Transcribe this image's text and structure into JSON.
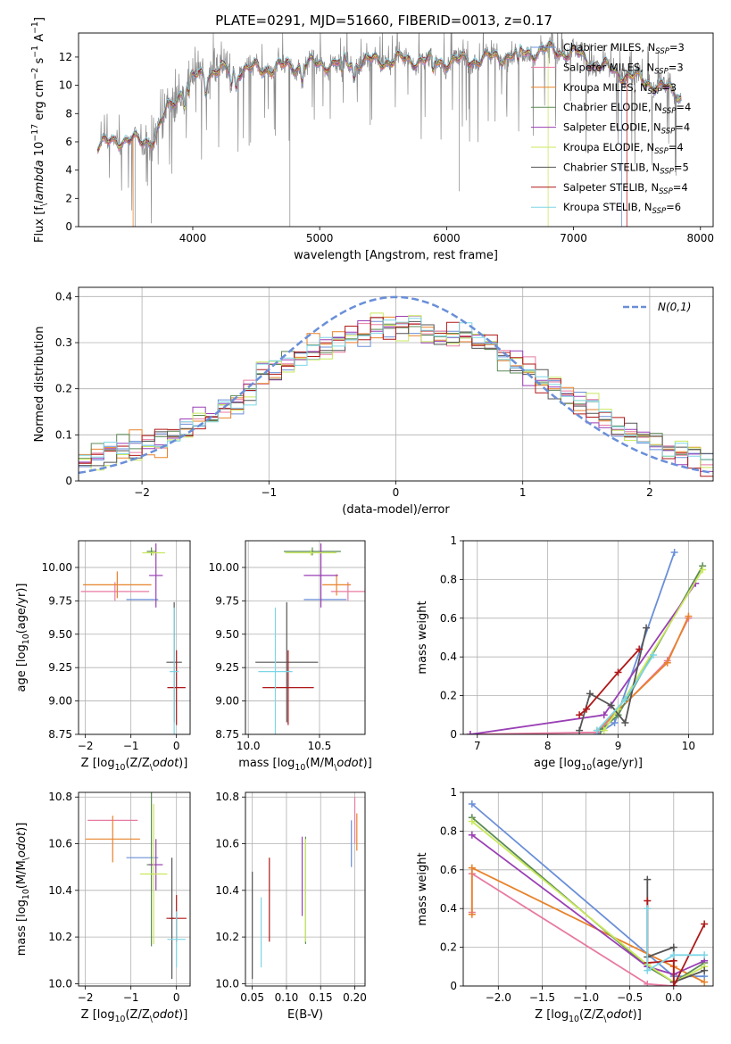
{
  "figure_title": "PLATE=0291, MJD=51660, FIBERID=0013, z=0.17",
  "colors": {
    "Chabrier MILES": "#6a8fd8",
    "Salpeter MILES": "#e87aa2",
    "Kroupa MILES": "#e8822a",
    "Chabrier ELODIE": "#5b8a55",
    "Salpeter ELODIE": "#9a3fb5",
    "Kroupa ELODIE": "#c9e85c",
    "Chabrier STELIB": "#555555",
    "Salpeter STELIB": "#b01818",
    "Kroupa STELIB": "#7dd6e6",
    "data": "#888888",
    "normal": "#6a8fd8",
    "grid": "#b0b0b0"
  },
  "chart_data": [
    {
      "id": "spectrum",
      "type": "line",
      "xlabel": "wavelength [Angstrom, rest frame]",
      "ylabel": "Flux [f$_\\lambda$ 10$^{-17}$ erg cm$^{-2}$ s$^{-1}$ A$^{-1}$]",
      "xlim": [
        3100,
        8100
      ],
      "ylim": [
        0,
        13.7
      ],
      "xticks": [
        4000,
        5000,
        6000,
        7000,
        8000
      ],
      "yticks": [
        0,
        2,
        4,
        6,
        8,
        10,
        12
      ],
      "grid": false,
      "legend_position": "right",
      "legend": [
        {
          "label": "Chabrier MILES, N",
          "sub": "SSP",
          "eq": "=3",
          "color_key": "Chabrier MILES"
        },
        {
          "label": "Salpeter MILES, N",
          "sub": "SSP",
          "eq": "=3",
          "color_key": "Salpeter MILES"
        },
        {
          "label": "Kroupa MILES, N",
          "sub": "SSP",
          "eq": "=3",
          "color_key": "Kroupa MILES"
        },
        {
          "label": "Chabrier ELODIE, N",
          "sub": "SSP",
          "eq": "=4",
          "color_key": "Chabrier ELODIE"
        },
        {
          "label": "Salpeter ELODIE, N",
          "sub": "SSP",
          "eq": "=4",
          "color_key": "Salpeter ELODIE"
        },
        {
          "label": "Kroupa ELODIE, N",
          "sub": "SSP",
          "eq": "=4",
          "color_key": "Kroupa ELODIE"
        },
        {
          "label": "Chabrier STELIB, N",
          "sub": "SSP",
          "eq": "=5",
          "color_key": "Chabrier STELIB"
        },
        {
          "label": "Salpeter STELIB, N",
          "sub": "SSP",
          "eq": "=4",
          "color_key": "Salpeter STELIB"
        },
        {
          "label": "Kroupa STELIB, N",
          "sub": "SSP",
          "eq": "=6",
          "color_key": "Kroupa STELIB"
        }
      ],
      "continuum": {
        "x": [
          3250,
          3400,
          3500,
          3600,
          3700,
          3800,
          3900,
          4000,
          4100,
          4200,
          4400,
          4600,
          4800,
          5000,
          5200,
          5400,
          5600,
          5800,
          6000,
          6200,
          6400,
          6600,
          6800,
          7000,
          7200,
          7400,
          7600,
          7800,
          7850
        ],
        "y": [
          5.6,
          6.2,
          6.1,
          6.0,
          6.3,
          8.3,
          9.5,
          10.5,
          10.9,
          11.0,
          11.1,
          11.2,
          11.4,
          11.5,
          11.6,
          11.7,
          11.8,
          11.8,
          11.7,
          11.8,
          12.0,
          12.3,
          12.5,
          12.3,
          11.4,
          10.8,
          10.2,
          9.5,
          9.3
        ]
      },
      "model_drop_x": {
        "Kroupa MILES": 3530,
        "Kroupa ELODIE": 6800,
        "Salpeter STELIB": 7420,
        "Chabrier MILES": 7380
      }
    },
    {
      "id": "residual_histogram",
      "type": "line",
      "xlabel": "(data-model)/error",
      "ylabel": "Normed distribution",
      "xlim": [
        -2.5,
        2.5
      ],
      "ylim": [
        0,
        0.42
      ],
      "xticks": [
        -2,
        -1,
        0,
        1,
        2
      ],
      "yticks": [
        0.0,
        0.1,
        0.2,
        0.3,
        0.4
      ],
      "grid": true,
      "legend": [
        {
          "label": "$\\mathcal{N}(0,1)$",
          "color_key": "normal",
          "style": "dashed"
        }
      ],
      "legend_position": "upper right",
      "bin_width": 0.1,
      "envelope": {
        "x": [
          -2.5,
          -2.0,
          -1.7,
          -1.5,
          -1.2,
          -1.0,
          -0.8,
          -0.6,
          -0.4,
          -0.2,
          0.0,
          0.2,
          0.4,
          0.6,
          0.8,
          1.0,
          1.2,
          1.4,
          1.6,
          1.8,
          2.0,
          2.2,
          2.5
        ],
        "y": [
          0.045,
          0.08,
          0.1,
          0.14,
          0.19,
          0.24,
          0.26,
          0.29,
          0.31,
          0.33,
          0.34,
          0.33,
          0.32,
          0.31,
          0.28,
          0.25,
          0.21,
          0.18,
          0.15,
          0.11,
          0.08,
          0.065,
          0.04
        ]
      }
    },
    {
      "id": "age_vs_Z",
      "type": "scatter",
      "xlabel": "Z [log$_{10}$(Z/Z$_\\odot$)]",
      "ylabel": "age  [log$_{10}$(age/yr)]",
      "xlim": [
        -2.15,
        0.3
      ],
      "ylim": [
        8.75,
        10.2
      ],
      "xticks": [
        -2,
        -1,
        0
      ],
      "yticks": [
        8.75,
        9.0,
        9.25,
        9.5,
        9.75,
        10.0
      ],
      "ytick_labels": [
        "8.75",
        "9.00",
        "9.25",
        "9.50",
        "9.75",
        "10.00"
      ],
      "grid": true,
      "points": [
        {
          "k": "Chabrier MILES",
          "x": -0.75,
          "xe": 0.35,
          "y": 9.76,
          "ye": 0.0
        },
        {
          "k": "Salpeter MILES",
          "x": -1.35,
          "xe": 0.75,
          "y": 9.82,
          "ye": 0.07
        },
        {
          "k": "Kroupa MILES",
          "x": -1.3,
          "xe": 0.75,
          "y": 9.87,
          "ye": 0.1
        },
        {
          "k": "Chabrier ELODIE",
          "x": -0.55,
          "xe": 0.1,
          "y": 10.12,
          "ye": 0.03
        },
        {
          "k": "Salpeter ELODIE",
          "x": -0.45,
          "xe": 0.15,
          "y": 9.94,
          "ye": 0.24
        },
        {
          "k": "Kroupa ELODIE",
          "x": -0.5,
          "xe": 0.25,
          "y": 10.11,
          "ye": 0.02
        },
        {
          "k": "Chabrier STELIB",
          "x": -0.05,
          "xe": 0.17,
          "y": 9.29,
          "ye": 0.45
        },
        {
          "k": "Salpeter STELIB",
          "x": 0.0,
          "xe": 0.2,
          "y": 9.1,
          "ye": 0.28
        },
        {
          "k": "Kroupa STELIB",
          "x": -0.05,
          "xe": 0.1,
          "y": 9.22,
          "ye": 0.48
        }
      ]
    },
    {
      "id": "age_vs_mass",
      "type": "scatter",
      "xlabel": "mass [log$_{10}$(M/M$_\\odot$)]",
      "ylabel": "",
      "xlim": [
        9.98,
        10.82
      ],
      "ylim": [
        8.75,
        10.2
      ],
      "xticks": [
        10.0,
        10.5
      ],
      "xtick_labels": [
        "10.0",
        "10.5"
      ],
      "yticks": [
        8.75,
        9.0,
        9.25,
        9.5,
        9.75,
        10.0
      ],
      "ytick_labels": [
        "8.75",
        "9.00",
        "9.25",
        "9.50",
        "9.75",
        "10.00"
      ],
      "grid": true,
      "points": [
        {
          "k": "Chabrier MILES",
          "x": 10.54,
          "xe": 0.15,
          "y": 9.76,
          "ye": 0.0
        },
        {
          "k": "Salpeter MILES",
          "x": 10.7,
          "xe": 0.12,
          "y": 9.82,
          "ye": 0.07
        },
        {
          "k": "Kroupa MILES",
          "x": 10.62,
          "xe": 0.1,
          "y": 9.87,
          "ye": 0.08
        },
        {
          "k": "Chabrier ELODIE",
          "x": 10.45,
          "xe": 0.2,
          "y": 10.12,
          "ye": 0.03
        },
        {
          "k": "Salpeter ELODIE",
          "x": 10.51,
          "xe": 0.12,
          "y": 9.94,
          "ye": 0.24
        },
        {
          "k": "Kroupa ELODIE",
          "x": 10.44,
          "xe": 0.18,
          "y": 10.11,
          "ye": 0.02
        },
        {
          "k": "Chabrier STELIB",
          "x": 10.27,
          "xe": 0.22,
          "y": 9.29,
          "ye": 0.45
        },
        {
          "k": "Salpeter STELIB",
          "x": 10.28,
          "xe": 0.18,
          "y": 9.1,
          "ye": 0.28
        },
        {
          "k": "Kroupa STELIB",
          "x": 10.19,
          "xe": 0.12,
          "y": 9.22,
          "ye": 0.48
        }
      ]
    },
    {
      "id": "massweight_vs_age",
      "type": "line",
      "xlabel": "age  [log$_{10}$(age/yr)]",
      "ylabel": "mass weight",
      "xlim": [
        6.8,
        10.35
      ],
      "ylim": [
        0,
        1.0
      ],
      "xticks": [
        7,
        8,
        9,
        10
      ],
      "yticks": [
        0.0,
        0.2,
        0.4,
        0.6,
        0.8,
        1.0
      ],
      "grid": true,
      "series": [
        {
          "k": "Chabrier MILES",
          "x": [
            8.7,
            8.95,
            9.8
          ],
          "y": [
            0.0,
            0.06,
            0.94
          ]
        },
        {
          "k": "Salpeter MILES",
          "x": [
            6.9,
            8.7,
            9.7,
            10.0
          ],
          "y": [
            0.0,
            0.01,
            0.38,
            0.6
          ]
        },
        {
          "k": "Kroupa MILES",
          "x": [
            8.7,
            9.7,
            10.0
          ],
          "y": [
            0.02,
            0.37,
            0.61
          ]
        },
        {
          "k": "Chabrier ELODIE",
          "x": [
            8.75,
            9.0,
            10.2
          ],
          "y": [
            0.02,
            0.1,
            0.87
          ]
        },
        {
          "k": "Salpeter ELODIE",
          "x": [
            6.9,
            8.8,
            10.1
          ],
          "y": [
            0.0,
            0.1,
            0.78
          ]
        },
        {
          "k": "Kroupa ELODIE",
          "x": [
            8.8,
            9.0,
            10.2
          ],
          "y": [
            0.02,
            0.13,
            0.85
          ]
        },
        {
          "k": "Chabrier STELIB",
          "x": [
            8.45,
            8.6,
            8.9,
            9.1,
            9.4
          ],
          "y": [
            0.02,
            0.21,
            0.15,
            0.06,
            0.55
          ]
        },
        {
          "k": "Salpeter STELIB",
          "x": [
            8.45,
            8.55,
            9.0,
            9.3
          ],
          "y": [
            0.1,
            0.13,
            0.32,
            0.44
          ]
        },
        {
          "k": "Kroupa STELIB",
          "x": [
            8.7,
            9.1,
            9.5
          ],
          "y": [
            0.02,
            0.18,
            0.41
          ]
        }
      ]
    },
    {
      "id": "mass_vs_Z",
      "type": "scatter",
      "xlabel": "Z [log$_{10}$(Z/Z$_\\odot$)]",
      "ylabel": "mass [log$_{10}$(M/M$_\\odot$)]",
      "xlim": [
        -2.15,
        0.3
      ],
      "ylim": [
        9.99,
        10.82
      ],
      "xticks": [
        -2,
        -1,
        0
      ],
      "yticks": [
        10.0,
        10.2,
        10.4,
        10.6,
        10.8
      ],
      "ytick_labels": [
        "10.0",
        "10.2",
        "10.4",
        "10.6",
        "10.8"
      ],
      "grid": true,
      "points": [
        {
          "k": "Chabrier MILES",
          "x": -0.75,
          "xe": 0.35,
          "y": 10.54,
          "ye": 0.0
        },
        {
          "k": "Salpeter MILES",
          "x": -1.4,
          "xe": 0.55,
          "y": 10.7,
          "ye": 0.0
        },
        {
          "k": "Kroupa MILES",
          "x": -1.4,
          "xe": 0.6,
          "y": 10.62,
          "ye": 0.1
        },
        {
          "k": "Chabrier ELODIE",
          "x": -0.55,
          "xe": 0.1,
          "y": 10.51,
          "ye": 0.35
        },
        {
          "k": "Salpeter ELODIE",
          "x": -0.45,
          "xe": 0.15,
          "y": 10.51,
          "ye": 0.11
        },
        {
          "k": "Kroupa ELODIE",
          "x": -0.5,
          "xe": 0.3,
          "y": 10.47,
          "ye": 0.3
        },
        {
          "k": "Chabrier STELIB",
          "x": -0.1,
          "xe": 0.05,
          "y": 10.28,
          "ye": 0.26
        },
        {
          "k": "Salpeter STELIB",
          "x": 0.0,
          "xe": 0.22,
          "y": 10.28,
          "ye": 0.1
        },
        {
          "k": "Kroupa STELIB",
          "x": 0.0,
          "xe": 0.2,
          "y": 10.19,
          "ye": 0.12
        }
      ]
    },
    {
      "id": "mass_vs_EBV",
      "type": "scatter",
      "xlabel": "E(B-V)",
      "ylabel": "",
      "xlim": [
        0.04,
        0.215
      ],
      "ylim": [
        9.99,
        10.82
      ],
      "xticks": [
        0.05,
        0.1,
        0.15,
        0.2
      ],
      "xtick_labels": [
        "0.05",
        "0.10",
        "0.15",
        "0.20"
      ],
      "yticks": [
        10.0,
        10.2,
        10.4,
        10.6,
        10.8
      ],
      "ytick_labels": [
        "10.0",
        "10.2",
        "10.4",
        "10.6",
        "10.8"
      ],
      "grid": true,
      "points": [
        {
          "k": "Chabrier MILES",
          "x": 0.195,
          "xe": 0.0,
          "y": 10.6,
          "ye": 0.1
        },
        {
          "k": "Salpeter MILES",
          "x": 0.2,
          "xe": 0.0,
          "y": 10.7,
          "ye": 0.1
        },
        {
          "k": "Kroupa MILES",
          "x": 0.203,
          "xe": 0.0,
          "y": 10.65,
          "ye": 0.08
        },
        {
          "k": "Chabrier ELODIE",
          "x": 0.128,
          "xe": 0.0,
          "y": 10.4,
          "ye": 0.23
        },
        {
          "k": "Salpeter ELODIE",
          "x": 0.123,
          "xe": 0.0,
          "y": 10.46,
          "ye": 0.17
        },
        {
          "k": "Kroupa ELODIE",
          "x": 0.128,
          "xe": 0.0,
          "y": 10.4,
          "ye": 0.22
        },
        {
          "k": "Chabrier STELIB",
          "x": 0.05,
          "xe": 0.0,
          "y": 10.25,
          "ye": 0.23
        },
        {
          "k": "Salpeter STELIB",
          "x": 0.075,
          "xe": 0.0,
          "y": 10.36,
          "ye": 0.18
        },
        {
          "k": "Kroupa STELIB",
          "x": 0.063,
          "xe": 0.0,
          "y": 10.22,
          "ye": 0.15
        }
      ]
    },
    {
      "id": "massweight_vs_Z",
      "type": "line",
      "xlabel": "Z [log$_{10}$(Z/Z$_\\odot$)]",
      "ylabel": "mass weight",
      "xlim": [
        -2.4,
        0.45
      ],
      "ylim": [
        0,
        1.0
      ],
      "xticks": [
        -2.0,
        -1.5,
        -1.0,
        -0.5,
        0.0
      ],
      "xtick_labels": [
        "−2.0",
        "−1.5",
        "−1.0",
        "−0.5",
        "0.0"
      ],
      "yticks": [
        0.0,
        0.2,
        0.4,
        0.6,
        0.8,
        1.0
      ],
      "grid": true,
      "series": [
        {
          "k": "Chabrier MILES",
          "x": [
            -2.3,
            0.0,
            0.35
          ],
          "y": [
            0.94,
            0.05,
            0.05
          ]
        },
        {
          "k": "Salpeter MILES",
          "x": [
            -2.3,
            -2.3,
            -0.3,
            0.0
          ],
          "y": [
            0.38,
            0.58,
            0.01,
            0.0
          ]
        },
        {
          "k": "Kroupa MILES",
          "x": [
            -2.3,
            -2.3,
            0.0,
            0.35
          ],
          "y": [
            0.37,
            0.61,
            0.1,
            0.02
          ]
        },
        {
          "k": "Chabrier ELODIE",
          "x": [
            -2.3,
            -0.3,
            0.0,
            0.35
          ],
          "y": [
            0.87,
            0.1,
            0.02,
            0.12
          ]
        },
        {
          "k": "Salpeter ELODIE",
          "x": [
            -2.3,
            -0.3,
            0.0,
            0.35
          ],
          "y": [
            0.78,
            0.1,
            0.06,
            0.13
          ]
        },
        {
          "k": "Kroupa ELODIE",
          "x": [
            -2.3,
            -0.3,
            0.0,
            0.35
          ],
          "y": [
            0.85,
            0.11,
            0.02,
            0.1
          ]
        },
        {
          "k": "Chabrier STELIB",
          "x": [
            -0.3,
            -0.3,
            0.0,
            0.0,
            0.35
          ],
          "y": [
            0.55,
            0.15,
            0.2,
            0.02,
            0.08
          ]
        },
        {
          "k": "Salpeter STELIB",
          "x": [
            -0.3,
            -0.3,
            0.0,
            0.0,
            0.35
          ],
          "y": [
            0.44,
            0.12,
            0.13,
            0.0,
            0.32
          ]
        },
        {
          "k": "Kroupa STELIB",
          "x": [
            -0.3,
            -0.3,
            0.0,
            0.35
          ],
          "y": [
            0.4,
            0.08,
            0.16,
            0.16
          ]
        }
      ]
    }
  ]
}
